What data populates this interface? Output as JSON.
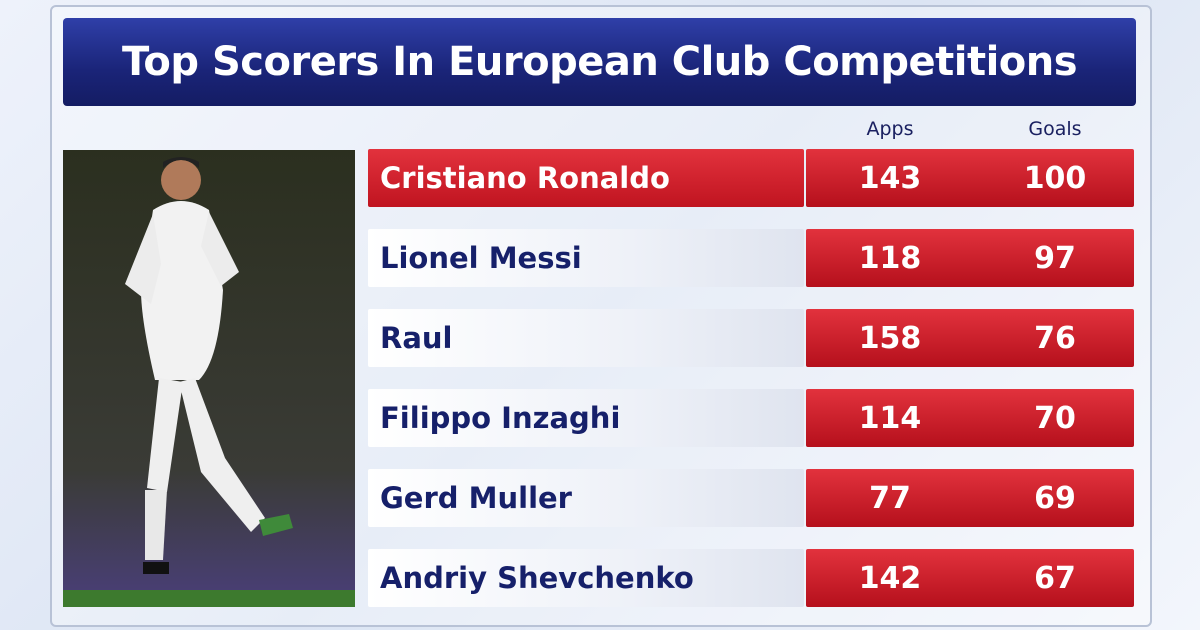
{
  "title": "Top Scorers In European Club Competitions",
  "table": {
    "headers": [
      "Apps",
      "Goals"
    ],
    "rows": [
      [
        "Cristiano Ronaldo",
        "143",
        "100"
      ],
      [
        "Lionel Messi",
        "118",
        "97"
      ],
      [
        "Raul",
        "158",
        "76"
      ],
      [
        "Filippo Inzaghi",
        "114",
        "70"
      ],
      [
        "Gerd Muller",
        "77",
        "69"
      ],
      [
        "Andriy Shevchenko",
        "142",
        "67"
      ]
    ]
  }
}
